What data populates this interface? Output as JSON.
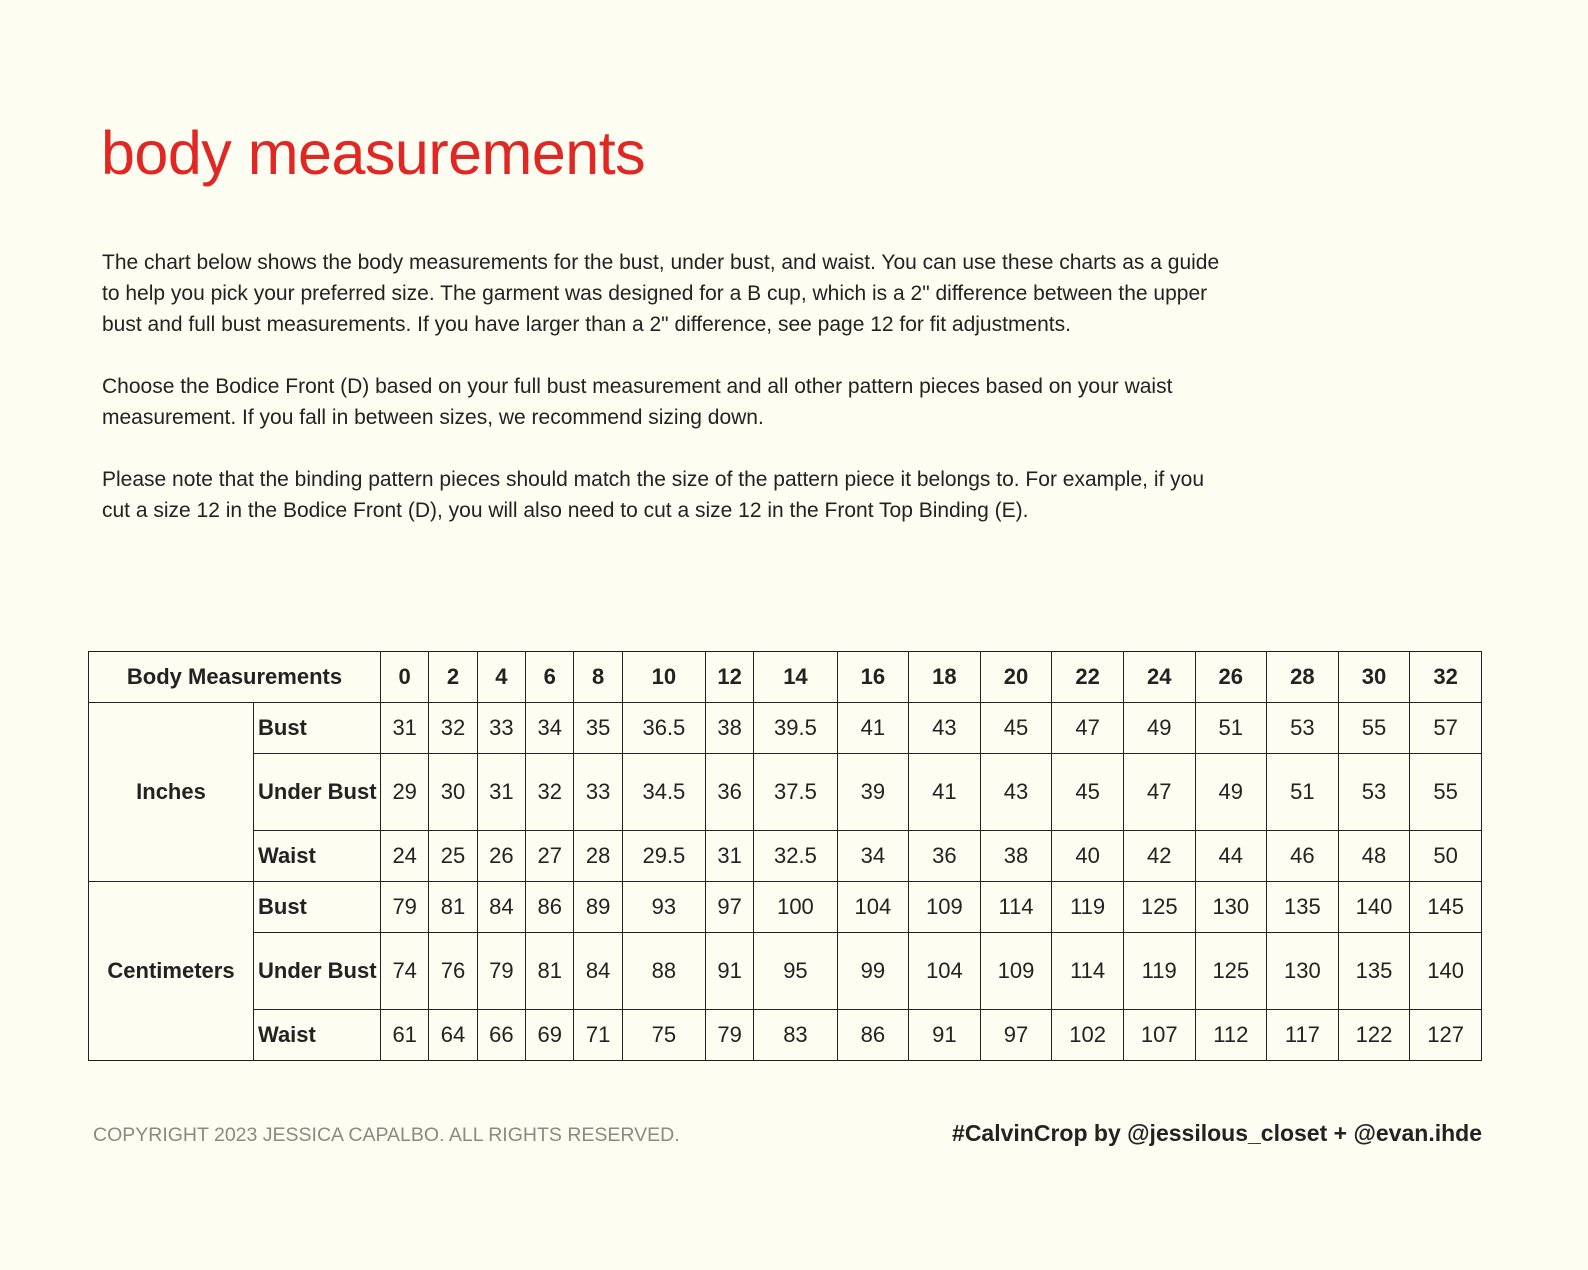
{
  "title": "body measurements",
  "paragraphs": [
    "The chart below shows the body measurements for the bust, under bust, and waist. You can use these charts as a guide to help you pick your preferred size. The garment was designed for a B cup, which is a 2\" difference between the upper bust and full bust measurements. If you have larger than a 2\" difference, see page 12 for fit adjustments.",
    "Choose the Bodice Front (D) based on your full bust measurement and all other pattern pieces based on your waist measurement. If you fall in between sizes, we recommend sizing down.",
    "Please note that the binding pattern pieces should match the size of the pattern piece it belongs to. For example, if you cut a size 12 in the Bodice Front (D), you will also need to cut a size 12 in the Front Top Binding (E)."
  ],
  "table": {
    "header": "Body Measurements",
    "sizes": [
      "0",
      "2",
      "4",
      "6",
      "8",
      "10",
      "12",
      "14",
      "16",
      "18",
      "20",
      "22",
      "24",
      "26",
      "28",
      "30",
      "32"
    ],
    "groups": [
      {
        "unit": "Inches",
        "rows": [
          {
            "label": "Bust",
            "values": [
              "31",
              "32",
              "33",
              "34",
              "35",
              "36.5",
              "38",
              "39.5",
              "41",
              "43",
              "45",
              "47",
              "49",
              "51",
              "53",
              "55",
              "57"
            ]
          },
          {
            "label": "Under Bust",
            "values": [
              "29",
              "30",
              "31",
              "32",
              "33",
              "34.5",
              "36",
              "37.5",
              "39",
              "41",
              "43",
              "45",
              "47",
              "49",
              "51",
              "53",
              "55"
            ]
          },
          {
            "label": "Waist",
            "values": [
              "24",
              "25",
              "26",
              "27",
              "28",
              "29.5",
              "31",
              "32.5",
              "34",
              "36",
              "38",
              "40",
              "42",
              "44",
              "46",
              "48",
              "50"
            ]
          }
        ]
      },
      {
        "unit": "Centimeters",
        "rows": [
          {
            "label": "Bust",
            "values": [
              "79",
              "81",
              "84",
              "86",
              "89",
              "93",
              "97",
              "100",
              "104",
              "109",
              "114",
              "119",
              "125",
              "130",
              "135",
              "140",
              "145"
            ]
          },
          {
            "label": "Under Bust",
            "values": [
              "74",
              "76",
              "79",
              "81",
              "84",
              "88",
              "91",
              "95",
              "99",
              "104",
              "109",
              "114",
              "119",
              "125",
              "130",
              "135",
              "140"
            ]
          },
          {
            "label": "Waist",
            "values": [
              "61",
              "64",
              "66",
              "69",
              "71",
              "75",
              "79",
              "83",
              "86",
              "91",
              "97",
              "102",
              "107",
              "112",
              "117",
              "122",
              "127"
            ]
          }
        ]
      }
    ]
  },
  "footer": {
    "copyright": "COPYRIGHT 2023 JESSICA CAPALBO. ALL RIGHTS RESERVED.",
    "credit": "#CalvinCrop by @jessilous_closet + @evan.ihde"
  },
  "colors": {
    "title": "#e02723",
    "background": "#fdfdf2",
    "text": "#222222",
    "footer_gray": "#8a8a82"
  }
}
